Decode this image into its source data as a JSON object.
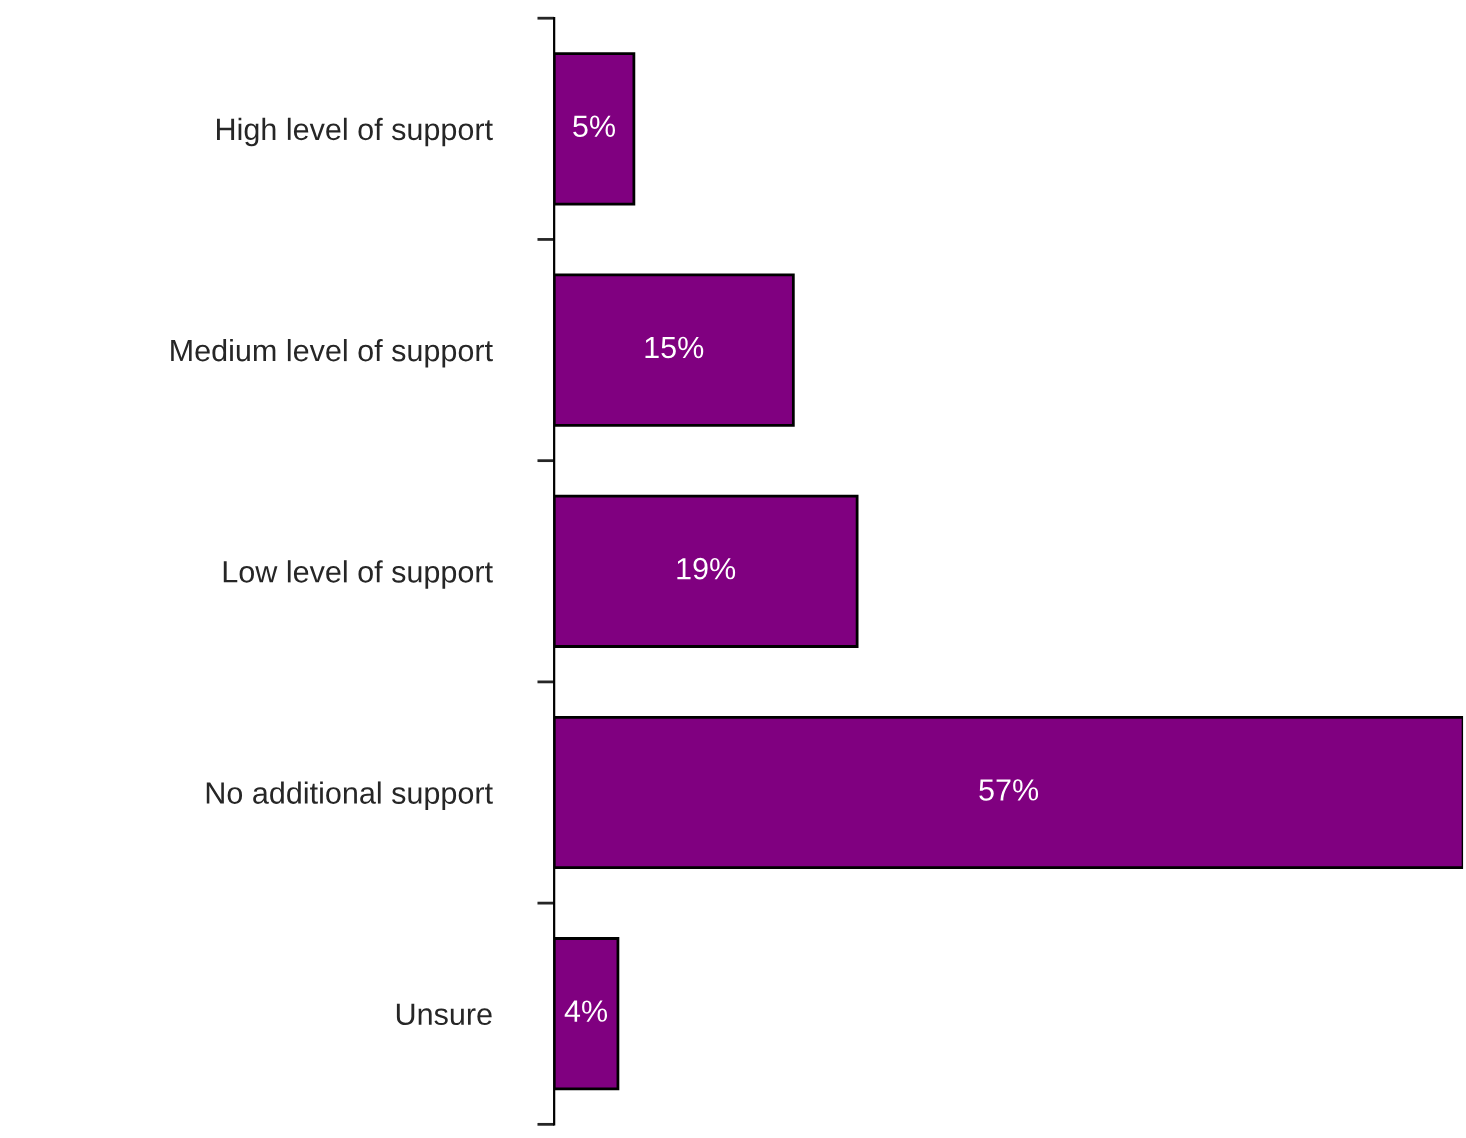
{
  "chart_data": {
    "type": "bar",
    "orientation": "horizontal",
    "categories": [
      "High level of support",
      "Medium level of support",
      "Low level of support",
      "No additional support",
      "Unsure"
    ],
    "values": [
      5,
      15,
      19,
      57,
      4
    ],
    "value_labels": [
      "5%",
      "15%",
      "19%",
      "57%",
      "4%"
    ],
    "color": "#800080",
    "xlim": [
      0,
      57
    ],
    "grid": false,
    "legend": false
  }
}
